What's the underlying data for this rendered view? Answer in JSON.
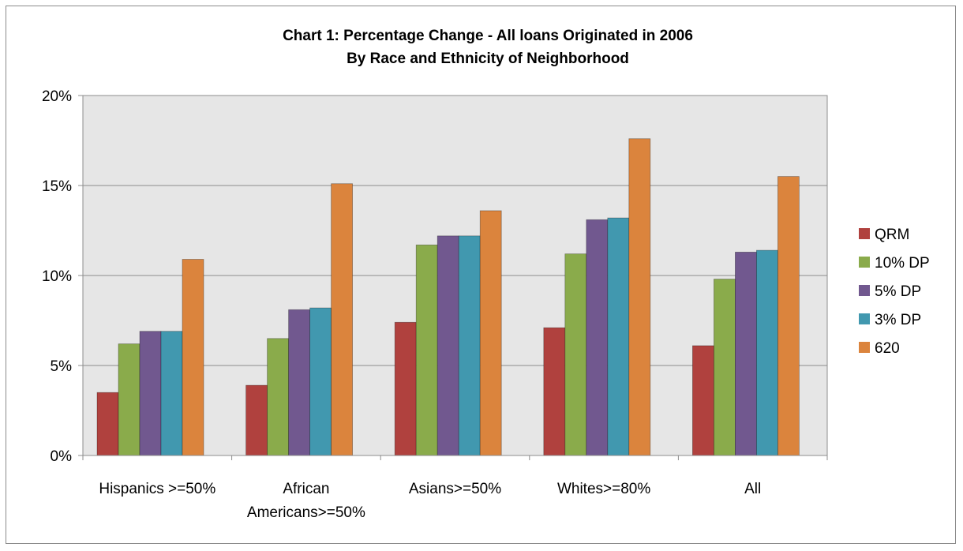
{
  "chart_data": {
    "type": "bar",
    "title": [
      "Chart 1: Percentage Change - All loans Originated in 2006",
      "By Race and Ethnicity of Neighborhood"
    ],
    "categories": [
      [
        "Hispanics >=50%"
      ],
      [
        "African",
        "Americans>=50%"
      ],
      [
        "Asians>=50%"
      ],
      [
        "Whites>=80%"
      ],
      [
        "All"
      ]
    ],
    "series": [
      {
        "name": "QRM",
        "color": "#b0413e",
        "values": [
          3.5,
          3.9,
          7.4,
          7.1,
          6.1
        ]
      },
      {
        "name": "10% DP",
        "color": "#8aab4b",
        "values": [
          6.2,
          6.5,
          11.7,
          11.2,
          9.8
        ]
      },
      {
        "name": "5% DP",
        "color": "#71588f",
        "values": [
          6.9,
          8.1,
          12.2,
          13.1,
          11.3
        ]
      },
      {
        "name": "3% DP",
        "color": "#4198af",
        "values": [
          6.9,
          8.2,
          12.2,
          13.2,
          11.4
        ]
      },
      {
        "name": "620",
        "color": "#db843d",
        "values": [
          10.9,
          15.1,
          13.6,
          17.6,
          15.5
        ]
      }
    ],
    "yticks": [
      "0%",
      "5%",
      "10%",
      "15%",
      "20%"
    ],
    "ylim": [
      0,
      20
    ],
    "grid": true,
    "legend_position": "right",
    "plot_background": "#e6e6e6",
    "xlabel": "",
    "ylabel": ""
  }
}
